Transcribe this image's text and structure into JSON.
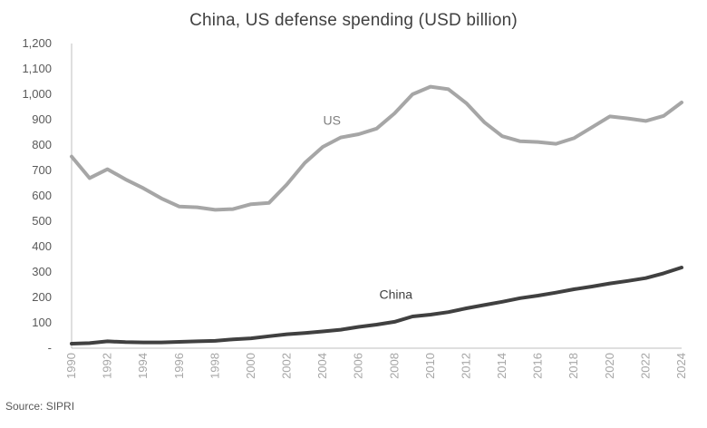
{
  "chart_data": {
    "type": "line",
    "title": "China, US defense spending (USD billion)",
    "xlabel": "",
    "ylabel": "",
    "x": [
      1990,
      1991,
      1992,
      1993,
      1994,
      1995,
      1996,
      1997,
      1998,
      1999,
      2000,
      2001,
      2002,
      2003,
      2004,
      2005,
      2006,
      2007,
      2008,
      2009,
      2010,
      2011,
      2012,
      2013,
      2014,
      2015,
      2016,
      2017,
      2018,
      2019,
      2020,
      2021,
      2022,
      2023,
      2024
    ],
    "x_tick_labels": [
      "1990",
      "1992",
      "1994",
      "1996",
      "1998",
      "2000",
      "2002",
      "2004",
      "2006",
      "2008",
      "2010",
      "2012",
      "2014",
      "2016",
      "2018",
      "2020",
      "2022",
      "2024"
    ],
    "y_tick_labels": [
      "-",
      "100",
      "200",
      "300",
      "400",
      "500",
      "600",
      "700",
      "800",
      "900",
      "1,000",
      "1,100",
      "1,200"
    ],
    "ylim": [
      0,
      1200
    ],
    "grid": false,
    "series": [
      {
        "name": "US",
        "color": "#a6a6a6",
        "values": [
          755,
          670,
          705,
          665,
          630,
          590,
          558,
          555,
          545,
          548,
          567,
          572,
          645,
          730,
          793,
          830,
          843,
          865,
          925,
          1000,
          1030,
          1020,
          965,
          890,
          835,
          815,
          812,
          805,
          827,
          870,
          913,
          905,
          895,
          915,
          968
        ]
      },
      {
        "name": "China",
        "color": "#404040",
        "values": [
          18,
          20,
          27,
          24,
          23,
          23,
          25,
          27,
          29,
          35,
          39,
          47,
          55,
          60,
          66,
          73,
          84,
          93,
          104,
          125,
          132,
          142,
          157,
          170,
          183,
          197,
          207,
          219,
          232,
          243,
          255,
          265,
          276,
          295,
          318
        ]
      }
    ]
  },
  "source": "Source: SIPRI"
}
